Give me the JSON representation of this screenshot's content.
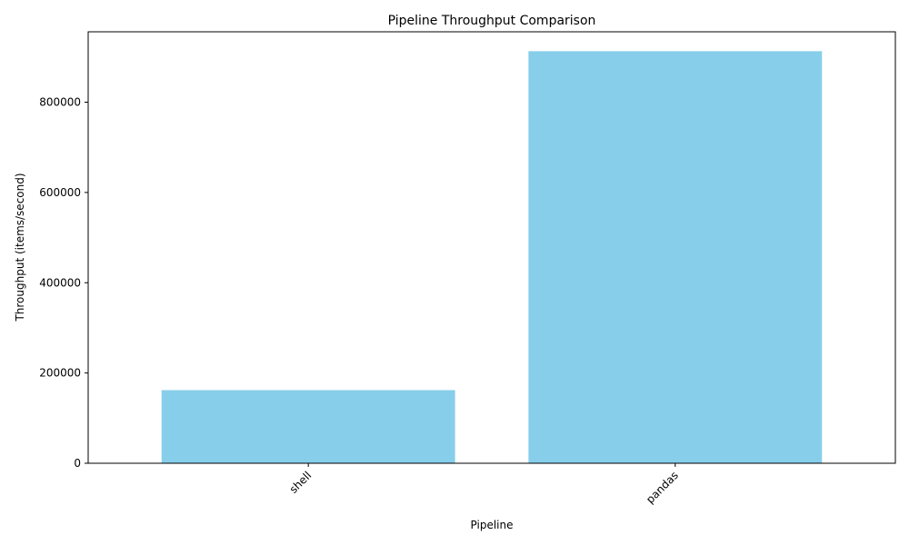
{
  "chart_data": {
    "type": "bar",
    "title": "Pipeline Throughput Comparison",
    "xlabel": "Pipeline",
    "ylabel": "Throughput (items/second)",
    "categories": [
      "shell",
      "pandas"
    ],
    "values": [
      162000,
      913000
    ],
    "ylim": [
      0,
      956000
    ],
    "yticks": [
      0,
      200000,
      400000,
      600000,
      800000
    ],
    "bar_color": "#87ceeb",
    "grid": false,
    "xtick_rotation": 45
  }
}
